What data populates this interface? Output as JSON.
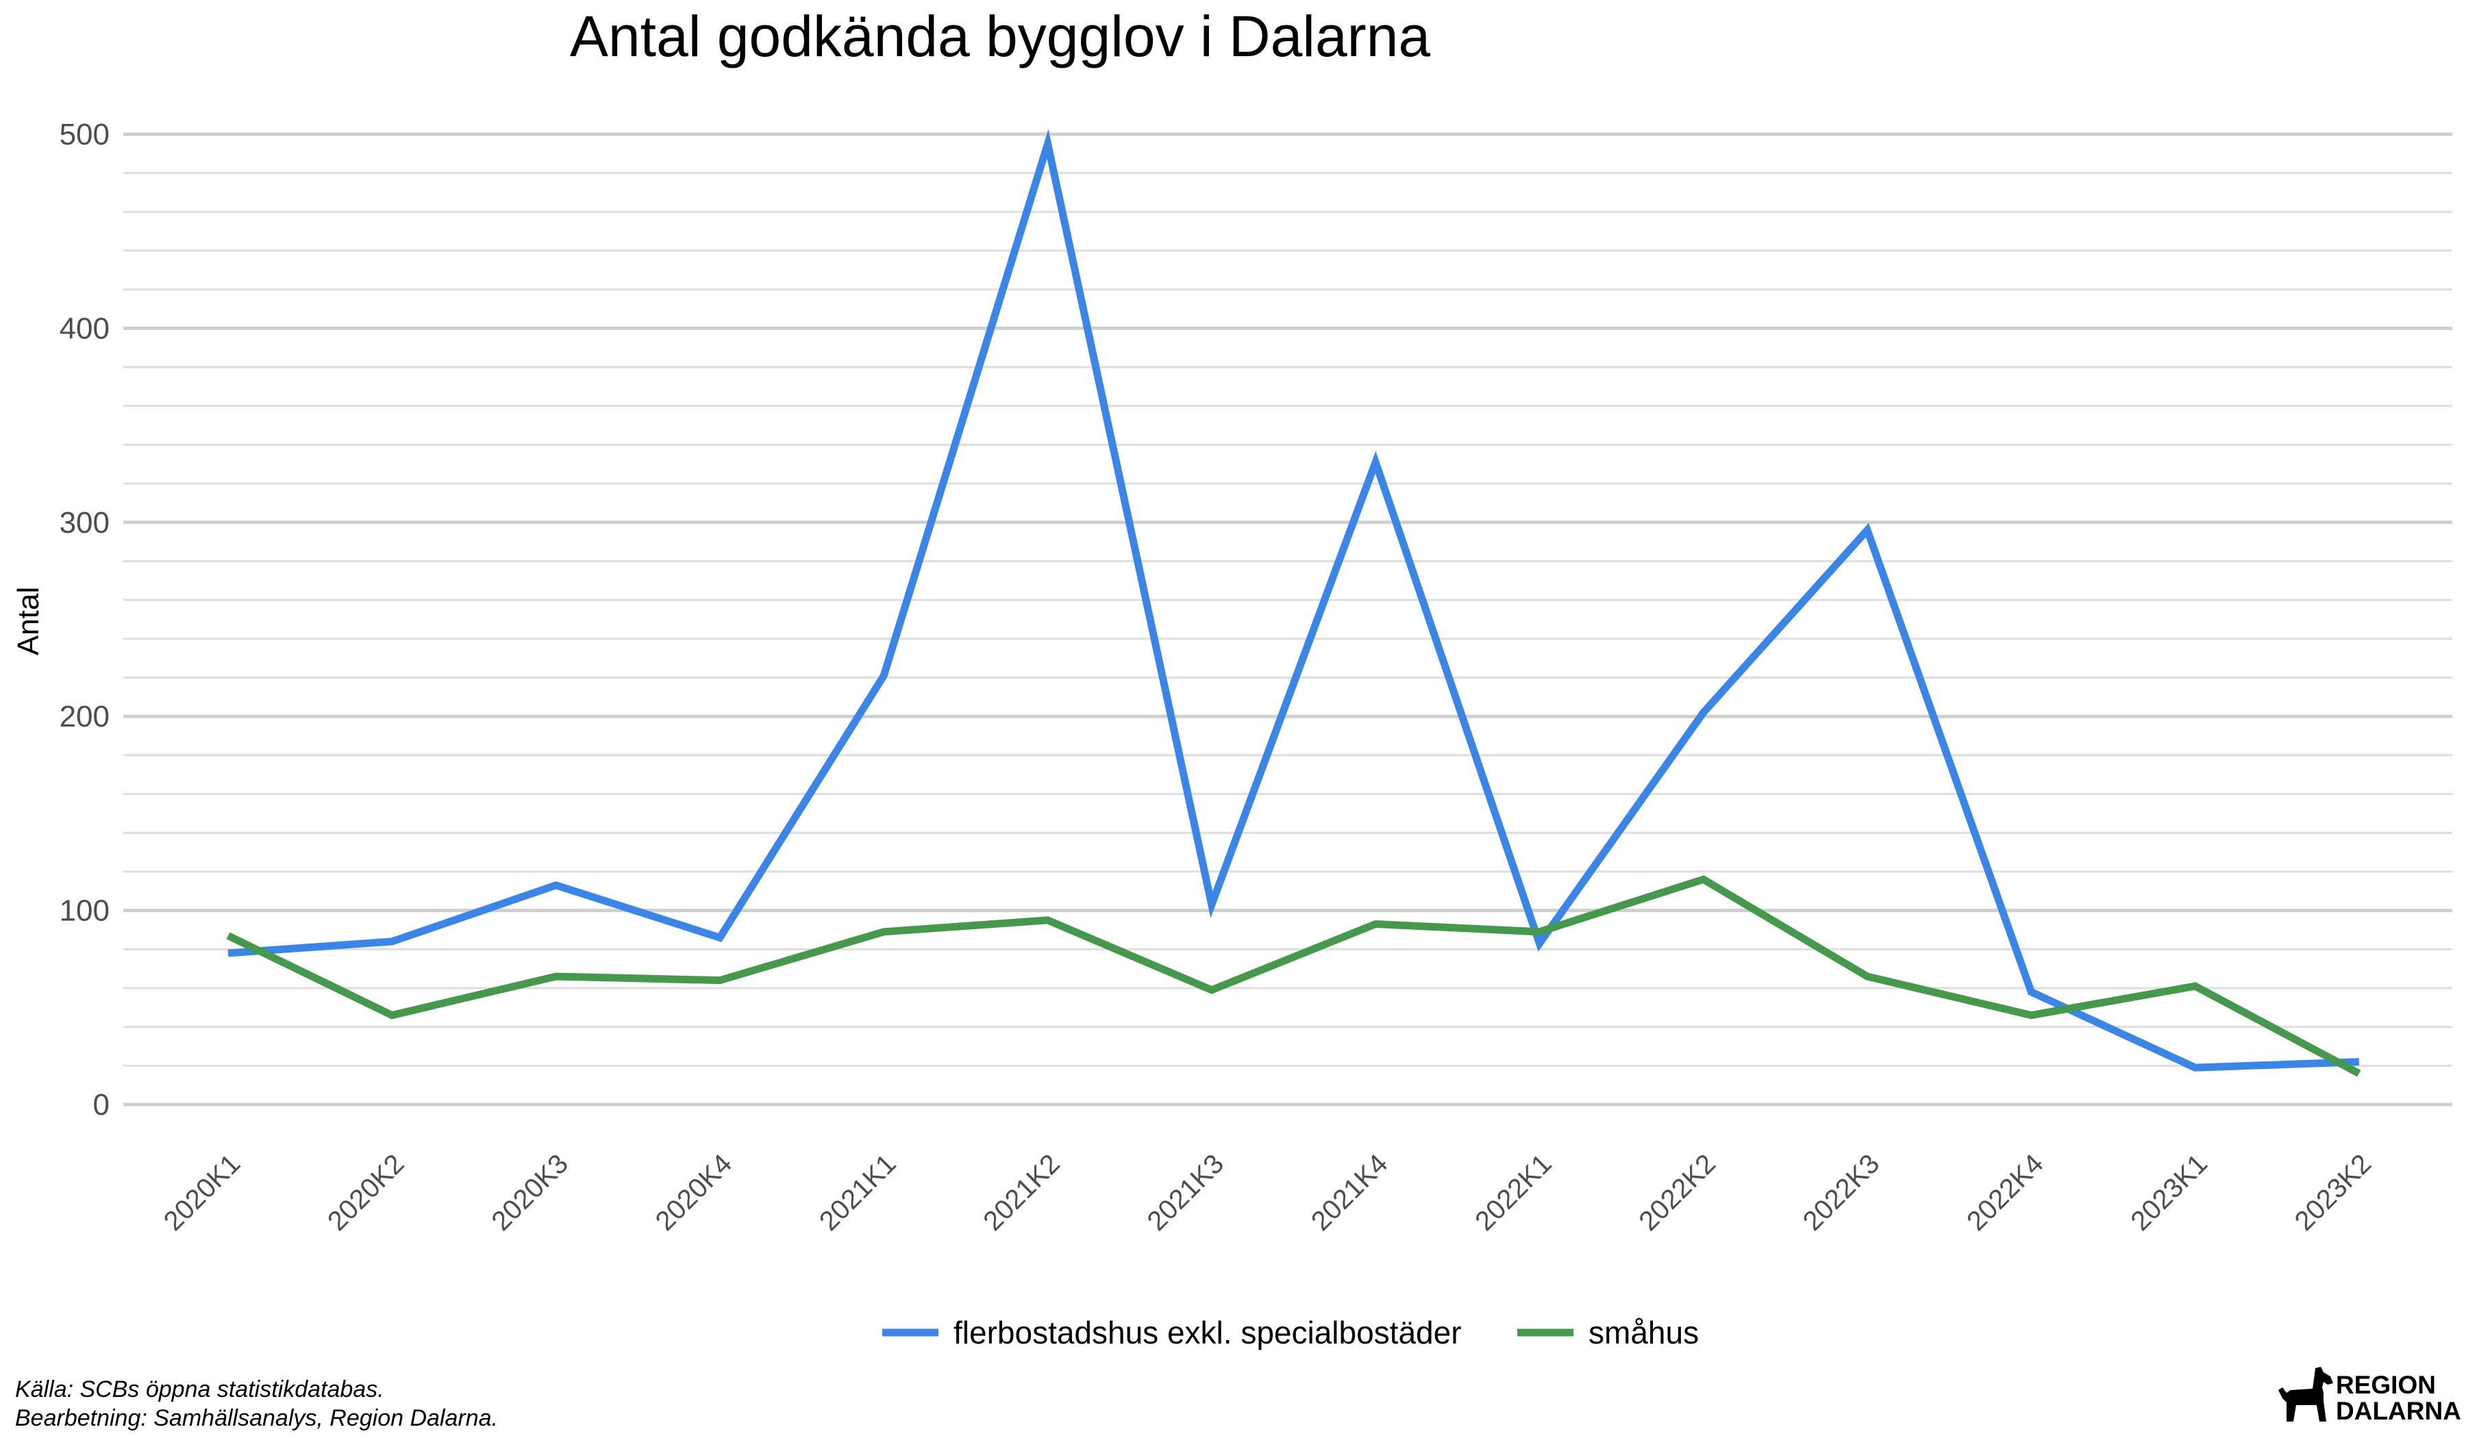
{
  "chart_data": {
    "type": "line",
    "title": "Antal godkända bygglov i Dalarna",
    "xlabel": "",
    "ylabel": "Antal",
    "categories": [
      "2020K1",
      "2020K2",
      "2020K3",
      "2020K4",
      "2021K1",
      "2021K2",
      "2021K3",
      "2021K4",
      "2022K1",
      "2022K2",
      "2022K3",
      "2022K4",
      "2023K1",
      "2023K2"
    ],
    "series": [
      {
        "name": "flerbostadshus exkl. specialbostäder",
        "color": "#3a86e8",
        "values": [
          78,
          84,
          113,
          86,
          221,
          495,
          103,
          331,
          83,
          202,
          296,
          58,
          19,
          22
        ]
      },
      {
        "name": "småhus",
        "color": "#44994a",
        "values": [
          87,
          46,
          66,
          64,
          89,
          95,
          59,
          93,
          89,
          116,
          66,
          46,
          61,
          16
        ]
      }
    ],
    "ylim": [
      0,
      500
    ],
    "yticks": [
      0,
      100,
      200,
      300,
      400,
      500
    ],
    "minor_step": 20,
    "grid": true,
    "legend_position": "bottom"
  },
  "caption": {
    "source": "Källa: SCBs öppna statistikdatabas.",
    "processing": "Bearbetning: Samhällsanalys, Region Dalarna."
  },
  "logo": {
    "line1": "REGION",
    "line2": "DALARNA"
  }
}
